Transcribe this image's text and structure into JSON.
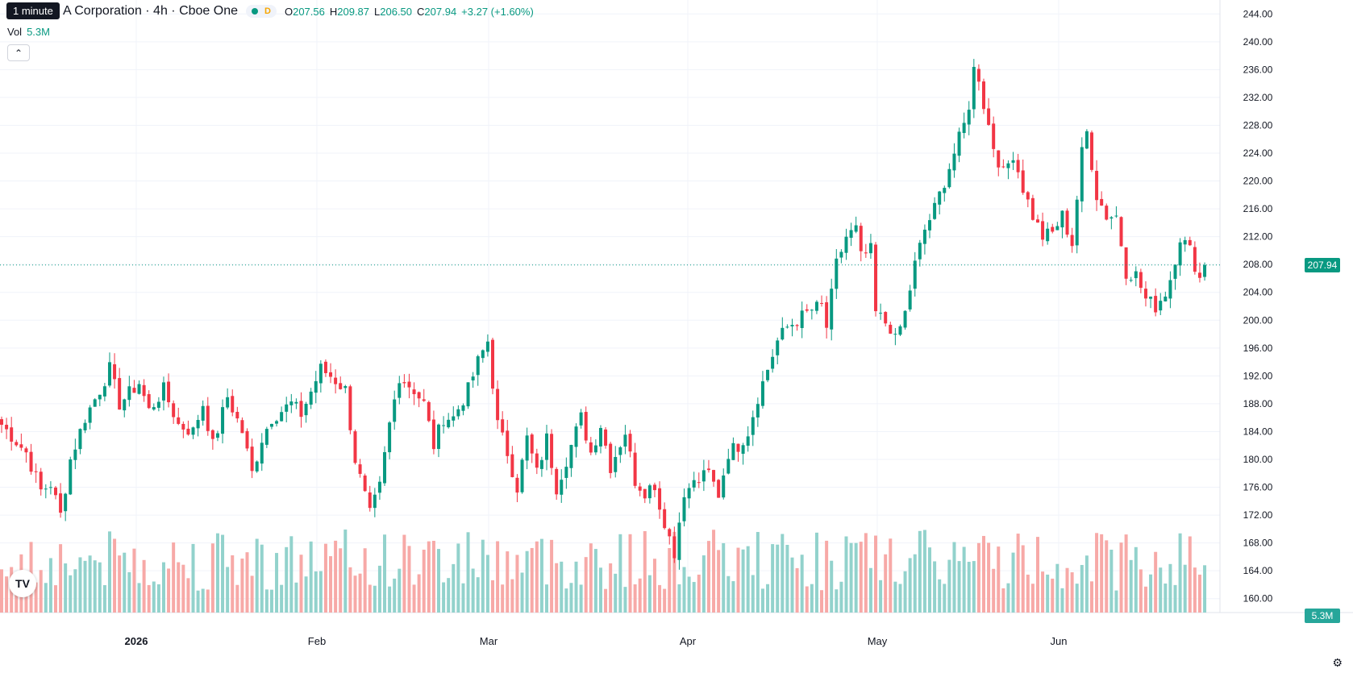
{
  "legend": {
    "title": "A Corporation · 4h · Cboe One",
    "interval_chip": "D",
    "open_key": "O",
    "open": "207.56",
    "high_key": "H",
    "high": "209.87",
    "low_key": "L",
    "low": "206.50",
    "close_key": "C",
    "close": "207.94",
    "change": "+3.27 (+1.60%)"
  },
  "tooltip": "1 minute",
  "volume": {
    "label": "Vol",
    "value": "5.3M"
  },
  "collapse_icon": "chevron-up-icon",
  "price_axis_labels": [
    "244.00",
    "240.00",
    "236.00",
    "232.00",
    "228.00",
    "224.00",
    "220.00",
    "216.00",
    "212.00",
    "208.00",
    "204.00",
    "200.00",
    "196.00",
    "192.00",
    "188.00",
    "184.00",
    "180.00",
    "176.00",
    "172.00",
    "168.00",
    "164.00",
    "160.00"
  ],
  "time_axis_labels": [
    "2026",
    "Feb",
    "Mar",
    "Apr",
    "May",
    "Jun"
  ],
  "last_price_tag": "207.94",
  "last_volume_tag": "5.3M",
  "colors": {
    "up": "#089981",
    "down": "#f23645",
    "up_volume": "#92d2cc",
    "down_volume": "#f7a9a7"
  },
  "icons": {
    "logo": "tradingview-logo-icon",
    "settings": "settings-icon"
  },
  "chart_data": {
    "type": "candlestick",
    "title": "A Corporation · 4h · Cboe One",
    "y_range": [
      158,
      246
    ],
    "last_price": 207.94,
    "x_labels": [
      "2026",
      "Feb",
      "Mar",
      "Apr",
      "May",
      "Jun"
    ],
    "anchors": [
      [
        0,
        185.0
      ],
      [
        5,
        181.0
      ],
      [
        8,
        175.5
      ],
      [
        10,
        176.5
      ],
      [
        12,
        172.0
      ],
      [
        14,
        180.0
      ],
      [
        17,
        186.0
      ],
      [
        20,
        190.0
      ],
      [
        22,
        193.0
      ],
      [
        24,
        188.0
      ],
      [
        28,
        191.0
      ],
      [
        30,
        187.0
      ],
      [
        33,
        190.0
      ],
      [
        36,
        185.0
      ],
      [
        39,
        184.0
      ],
      [
        41,
        188.0
      ],
      [
        43,
        182.0
      ],
      [
        46,
        189.0
      ],
      [
        49,
        184.0
      ],
      [
        51,
        178.0
      ],
      [
        53,
        183.0
      ],
      [
        55,
        186.0
      ],
      [
        59,
        188.0
      ],
      [
        61,
        186.5
      ],
      [
        65,
        193.0
      ],
      [
        67,
        192.0
      ],
      [
        70,
        190.0
      ],
      [
        72,
        180.0
      ],
      [
        75,
        172.0
      ],
      [
        77,
        176.0
      ],
      [
        79,
        185.0
      ],
      [
        81,
        192.0
      ],
      [
        84,
        190.0
      ],
      [
        86,
        188.0
      ],
      [
        88,
        182.0
      ],
      [
        90,
        186.0
      ],
      [
        92,
        186.0
      ],
      [
        95,
        190.0
      ],
      [
        97,
        194.0
      ],
      [
        99,
        197.0
      ],
      [
        101,
        185.0
      ],
      [
        103,
        181.0
      ],
      [
        105,
        176.0
      ],
      [
        107,
        183.0
      ],
      [
        109,
        178.0
      ],
      [
        111,
        183.0
      ],
      [
        113,
        176.0
      ],
      [
        115,
        180.0
      ],
      [
        118,
        186.0
      ],
      [
        120,
        181.0
      ],
      [
        122,
        185.0
      ],
      [
        124,
        179.0
      ],
      [
        127,
        184.0
      ],
      [
        129,
        177.0
      ],
      [
        131,
        175.5
      ],
      [
        133,
        176.5
      ],
      [
        134,
        173.0
      ],
      [
        136,
        169.0
      ],
      [
        137,
        166.0
      ],
      [
        138,
        172.0
      ],
      [
        140,
        176.0
      ],
      [
        142,
        177.0
      ],
      [
        144,
        178.0
      ],
      [
        146,
        175.0
      ],
      [
        148,
        181.0
      ],
      [
        150,
        182.0
      ],
      [
        152,
        184.0
      ],
      [
        154,
        189.0
      ],
      [
        156,
        193.0
      ],
      [
        158,
        197.0
      ],
      [
        160,
        199.0
      ],
      [
        162,
        200.0
      ],
      [
        165,
        201.5
      ],
      [
        167,
        202.0
      ],
      [
        168,
        199.0
      ],
      [
        170,
        208.0
      ],
      [
        172,
        212.0
      ],
      [
        174,
        213.0
      ],
      [
        175,
        209.0
      ],
      [
        177,
        210.0
      ],
      [
        178,
        201.0
      ],
      [
        181,
        199.0
      ],
      [
        182,
        197.0
      ],
      [
        184,
        201.0
      ],
      [
        186,
        208.0
      ],
      [
        188,
        213.0
      ],
      [
        190,
        216.0
      ],
      [
        192,
        220.0
      ],
      [
        194,
        224.0
      ],
      [
        196,
        228.0
      ],
      [
        197,
        231.0
      ],
      [
        198,
        236.0
      ],
      [
        199,
        235.0
      ],
      [
        200,
        231.0
      ],
      [
        202,
        225.0
      ],
      [
        204,
        221.0
      ],
      [
        206,
        224.0
      ],
      [
        208,
        219.0
      ],
      [
        210,
        215.0
      ],
      [
        212,
        212.0
      ],
      [
        214,
        212.5
      ],
      [
        216,
        215.0
      ],
      [
        218,
        211.0
      ],
      [
        220,
        224.0
      ],
      [
        221,
        227.0
      ],
      [
        223,
        218.0
      ],
      [
        225,
        215.0
      ],
      [
        227,
        215.0
      ],
      [
        229,
        207.0
      ],
      [
        231,
        206.5
      ],
      [
        233,
        203.0
      ],
      [
        235,
        202.0
      ],
      [
        237,
        204.0
      ],
      [
        238,
        206.0
      ],
      [
        240,
        212.0
      ],
      [
        242,
        210.0
      ],
      [
        244,
        206.0
      ],
      [
        245,
        207.94
      ]
    ],
    "volume_range": [
      0,
      11000000
    ]
  }
}
